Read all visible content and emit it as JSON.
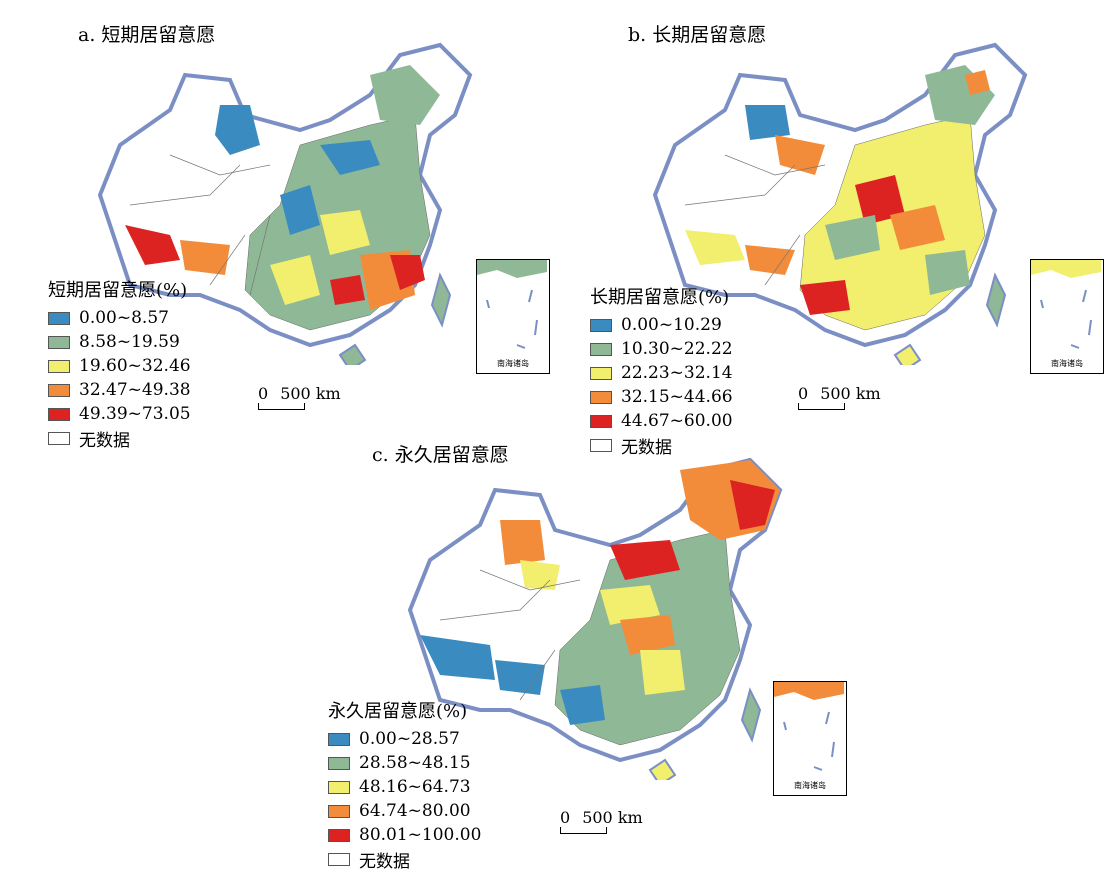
{
  "panels": [
    {
      "id": "a",
      "title": "a. 短期居留意愿",
      "legend_title": "短期居留意愿(%)",
      "classes": [
        {
          "label": "0.00~8.57",
          "color": "#3a8cc0"
        },
        {
          "label": "8.58~19.59",
          "color": "#8fb896"
        },
        {
          "label": "19.60~32.46",
          "color": "#f2ee6e"
        },
        {
          "label": "32.47~49.38",
          "color": "#f28c3a"
        },
        {
          "label": "49.39~73.05",
          "color": "#dd2222"
        }
      ],
      "no_data_label": "无数据",
      "scale_zero": "0",
      "scale_label": "500 km",
      "inset_label": "南海诸岛"
    },
    {
      "id": "b",
      "title": "b. 长期居留意愿",
      "legend_title": "长期居留意愿(%)",
      "classes": [
        {
          "label": "0.00~10.29",
          "color": "#3a8cc0"
        },
        {
          "label": "10.30~22.22",
          "color": "#8fb896"
        },
        {
          "label": "22.23~32.14",
          "color": "#f2ee6e"
        },
        {
          "label": "32.15~44.66",
          "color": "#f28c3a"
        },
        {
          "label": "44.67~60.00",
          "color": "#dd2222"
        }
      ],
      "no_data_label": "无数据",
      "scale_zero": "0",
      "scale_label": "500 km",
      "inset_label": "南海诸岛"
    },
    {
      "id": "c",
      "title": "c. 永久居留意愿",
      "legend_title": "永久居留意愿(%)",
      "classes": [
        {
          "label": "0.00~28.57",
          "color": "#3a8cc0"
        },
        {
          "label": "28.58~48.15",
          "color": "#8fb896"
        },
        {
          "label": "48.16~64.73",
          "color": "#f2ee6e"
        },
        {
          "label": "64.74~80.00",
          "color": "#f28c3a"
        },
        {
          "label": "80.01~100.00",
          "color": "#dd2222"
        }
      ],
      "no_data_label": "无数据",
      "scale_zero": "0",
      "scale_label": "500 km",
      "inset_label": "南海诸岛"
    }
  ],
  "colors": {
    "border": "#7b8fc4",
    "no_data": "#ffffff",
    "internal_lines": "#777777"
  }
}
